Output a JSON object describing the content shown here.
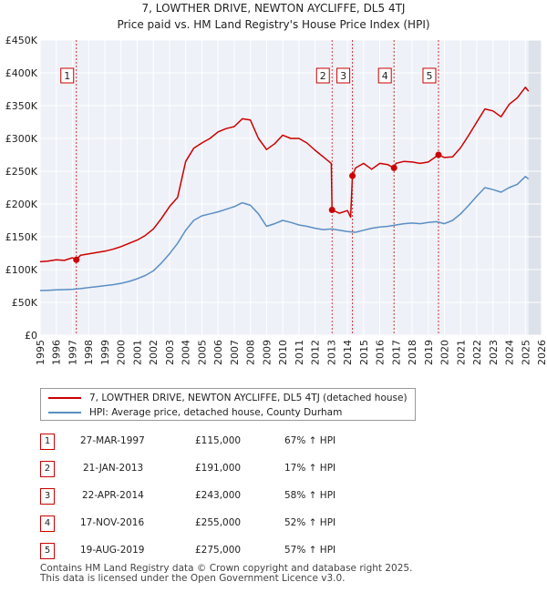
{
  "chart_data": {
    "type": "line",
    "title": "7, LOWTHER DRIVE, NEWTON AYCLIFFE, DL5 4TJ",
    "subtitle": "Price paid vs. HM Land Registry's House Price Index (HPI)",
    "xlim": [
      1995,
      2026
    ],
    "ylim": [
      0,
      450000
    ],
    "y_ticks": [
      0,
      50000,
      100000,
      150000,
      200000,
      250000,
      300000,
      350000,
      400000,
      450000
    ],
    "y_tick_labels": [
      "£0",
      "£50K",
      "£100K",
      "£150K",
      "£200K",
      "£250K",
      "£300K",
      "£350K",
      "£400K",
      "£450K"
    ],
    "x_ticks": [
      1995,
      1996,
      1997,
      1998,
      1999,
      2000,
      2001,
      2002,
      2003,
      2004,
      2005,
      2006,
      2007,
      2008,
      2009,
      2010,
      2011,
      2012,
      2013,
      2014,
      2015,
      2016,
      2017,
      2018,
      2019,
      2020,
      2021,
      2022,
      2023,
      2024,
      2025,
      2026
    ],
    "x_tick_labels": [
      "1995",
      "1996",
      "1997",
      "1998",
      "1999",
      "2000",
      "2001",
      "2002",
      "2003",
      "2004",
      "2005",
      "2006",
      "2007",
      "2008",
      "2009",
      "2010",
      "2011",
      "2012",
      "2013",
      "2014",
      "2015",
      "2016",
      "2017",
      "2018",
      "2019",
      "2020",
      "2021",
      "2022",
      "2023",
      "2024",
      "2025",
      "2026"
    ],
    "grid": true,
    "future_shaded_from": 2025.2,
    "series": [
      {
        "name": "7, LOWTHER DRIVE, NEWTON AYCLIFFE, DL5 4TJ (detached house)",
        "color": "#cc0000",
        "x": [
          1995.0,
          1995.5,
          1996.0,
          1996.5,
          1997.0,
          1997.24,
          1997.5,
          1998.0,
          1998.5,
          1999.0,
          1999.5,
          2000.0,
          2000.5,
          2001.0,
          2001.5,
          2002.0,
          2002.5,
          2003.0,
          2003.5,
          2004.0,
          2004.5,
          2005.0,
          2005.5,
          2006.0,
          2006.5,
          2007.0,
          2007.5,
          2008.0,
          2008.5,
          2009.0,
          2009.5,
          2010.0,
          2010.5,
          2011.0,
          2011.5,
          2012.0,
          2012.5,
          2013.0,
          2013.05,
          2013.5,
          2014.0,
          2014.2,
          2014.31,
          2014.5,
          2015.0,
          2015.5,
          2016.0,
          2016.5,
          2016.88,
          2017.0,
          2017.5,
          2018.0,
          2018.5,
          2019.0,
          2019.63,
          2020.0,
          2020.5,
          2021.0,
          2021.5,
          2022.0,
          2022.5,
          2023.0,
          2023.5,
          2024.0,
          2024.5,
          2025.0,
          2025.2
        ],
        "values": [
          112000,
          113000,
          115000,
          114000,
          118000,
          115000,
          122000,
          124000,
          126000,
          128000,
          131000,
          135000,
          140000,
          145000,
          152000,
          162000,
          178000,
          196000,
          210000,
          265000,
          285000,
          293000,
          300000,
          310000,
          315000,
          318000,
          330000,
          328000,
          300000,
          283000,
          292000,
          305000,
          300000,
          300000,
          293000,
          282000,
          272000,
          262000,
          191000,
          186000,
          190000,
          180000,
          243000,
          255000,
          262000,
          253000,
          262000,
          260000,
          255000,
          262000,
          265000,
          264000,
          262000,
          264000,
          275000,
          271000,
          272000,
          286000,
          305000,
          325000,
          345000,
          342000,
          333000,
          352000,
          362000,
          378000,
          372000
        ]
      },
      {
        "name": "HPI: Average price, detached house, County Durham",
        "color": "#5b8ec4",
        "x": [
          1995.0,
          1995.5,
          1996.0,
          1996.5,
          1997.0,
          1997.5,
          1998.0,
          1998.5,
          1999.0,
          1999.5,
          2000.0,
          2000.5,
          2001.0,
          2001.5,
          2002.0,
          2002.5,
          2003.0,
          2003.5,
          2004.0,
          2004.5,
          2005.0,
          2005.5,
          2006.0,
          2006.5,
          2007.0,
          2007.5,
          2008.0,
          2008.5,
          2009.0,
          2009.5,
          2010.0,
          2010.5,
          2011.0,
          2011.5,
          2012.0,
          2012.5,
          2013.0,
          2013.5,
          2014.0,
          2014.5,
          2015.0,
          2015.5,
          2016.0,
          2016.5,
          2017.0,
          2017.5,
          2018.0,
          2018.5,
          2019.0,
          2019.5,
          2020.0,
          2020.5,
          2021.0,
          2021.5,
          2022.0,
          2022.5,
          2023.0,
          2023.5,
          2024.0,
          2024.5,
          2025.0,
          2025.2
        ],
        "values": [
          68000,
          68500,
          69000,
          69500,
          70000,
          71000,
          72500,
          74000,
          75500,
          77000,
          79000,
          82000,
          86000,
          91000,
          98000,
          110000,
          124000,
          140000,
          160000,
          175000,
          182000,
          185000,
          188000,
          192000,
          196000,
          202000,
          198000,
          185000,
          166000,
          170000,
          175000,
          172000,
          168000,
          166000,
          163000,
          161000,
          162000,
          160000,
          158000,
          157000,
          160000,
          163000,
          165000,
          166000,
          168000,
          170000,
          171000,
          170000,
          172000,
          173000,
          170000,
          175000,
          185000,
          198000,
          212000,
          225000,
          222000,
          218000,
          225000,
          230000,
          242000,
          238000
        ]
      }
    ],
    "sales": [
      {
        "num": "1",
        "x": 1997.24,
        "value": 115000
      },
      {
        "num": "2",
        "x": 2013.05,
        "value": 191000
      },
      {
        "num": "3",
        "x": 2014.31,
        "value": 243000
      },
      {
        "num": "4",
        "x": 2016.88,
        "value": 255000
      },
      {
        "num": "5",
        "x": 2019.63,
        "value": 275000
      }
    ]
  },
  "legend": {
    "property": "7, LOWTHER DRIVE, NEWTON AYCLIFFE, DL5 4TJ (detached house)",
    "hpi": "HPI: Average price, detached house, County Durham",
    "property_color": "#cc0000",
    "hpi_color": "#5b8ec4"
  },
  "table": {
    "rows": [
      {
        "num": "1",
        "date": "27-MAR-1997",
        "price": "£115,000",
        "hpi": "67% ↑ HPI"
      },
      {
        "num": "2",
        "date": "21-JAN-2013",
        "price": "£191,000",
        "hpi": "17% ↑ HPI"
      },
      {
        "num": "3",
        "date": "22-APR-2014",
        "price": "£243,000",
        "hpi": "58% ↑ HPI"
      },
      {
        "num": "4",
        "date": "17-NOV-2016",
        "price": "£255,000",
        "hpi": "52% ↑ HPI"
      },
      {
        "num": "5",
        "date": "19-AUG-2019",
        "price": "£275,000",
        "hpi": "57% ↑ HPI"
      }
    ]
  },
  "footer": {
    "line1": "Contains HM Land Registry data © Crown copyright and database right 2025.",
    "line2": "This data is licensed under the Open Government Licence v3.0."
  }
}
